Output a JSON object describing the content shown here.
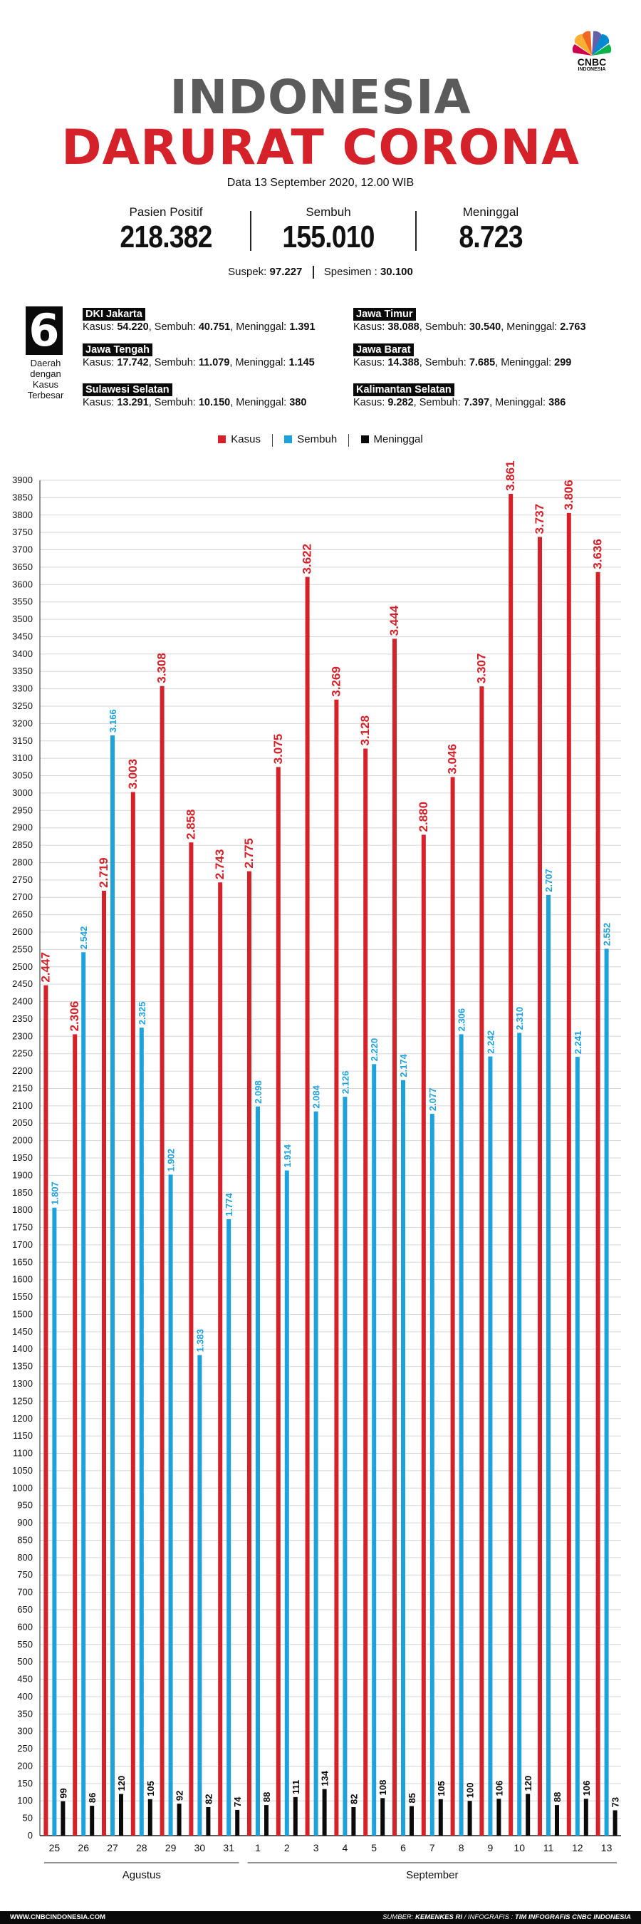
{
  "logo": {
    "name": "CNBC",
    "sub": "INDONESIA"
  },
  "header": {
    "title_line1": "INDONESIA",
    "title_line2": "DARURAT CORONA",
    "date": "Data 13 September 2020, 12.00 WIB"
  },
  "stats": [
    {
      "label": "Pasien Positif",
      "value": "218.382"
    },
    {
      "label": "Sembuh",
      "value": "155.010"
    },
    {
      "label": "Meninggal",
      "value": "8.723"
    }
  ],
  "sub_stats": {
    "suspek_label": "Suspek: ",
    "suspek_value": "97.227",
    "spesimen_label": "Spesimen : ",
    "spesimen_value": "30.100"
  },
  "regions_header": {
    "number": "6",
    "caption": "Daerah dengan Kasus Terbesar"
  },
  "regions": [
    {
      "name": "DKI Jakarta",
      "kasus": "54.220",
      "sembuh": "40.751",
      "meninggal": "1.391"
    },
    {
      "name": "Jawa Tengah",
      "kasus": "17.742",
      "sembuh": "11.079",
      "meninggal": "1.145"
    },
    {
      "name": "Sulawesi Selatan",
      "kasus": "13.291",
      "sembuh": "10.150",
      "meninggal": "380"
    },
    {
      "name": "Jawa Timur",
      "kasus": "38.088",
      "sembuh": "30.540",
      "meninggal": "2.763"
    },
    {
      "name": "Jawa Barat",
      "kasus": "14.388",
      "sembuh": "7.685",
      "meninggal": "299"
    },
    {
      "name": "Kalimantan Selatan",
      "kasus": "9.282",
      "sembuh": "7.397",
      "meninggal": "386"
    }
  ],
  "region_labels": {
    "kasus": "Kasus: ",
    "sembuh": ", Sembuh: ",
    "meninggal": ", Meninggal: "
  },
  "legend": [
    {
      "name": "Kasus",
      "color": "#d52129"
    },
    {
      "name": "Sembuh",
      "color": "#1ea2dc"
    },
    {
      "name": "Meninggal",
      "color": "#0a0a0a"
    }
  ],
  "chart_data": {
    "type": "bar",
    "categories": [
      "25",
      "26",
      "27",
      "28",
      "29",
      "30",
      "31",
      "1",
      "2",
      "3",
      "4",
      "5",
      "6",
      "7",
      "8",
      "9",
      "10",
      "11",
      "12",
      "13"
    ],
    "groups": [
      {
        "label": "Agustus",
        "from": 0,
        "to": 6
      },
      {
        "label": "September",
        "from": 7,
        "to": 19
      }
    ],
    "ylim": [
      0,
      3900
    ],
    "ytick_step": 50,
    "grid": true,
    "series": [
      {
        "name": "Kasus",
        "color": "#d52129",
        "values": [
          2447,
          2306,
          2719,
          3003,
          3308,
          2858,
          2743,
          2775,
          3075,
          3622,
          3269,
          3128,
          3444,
          2880,
          3046,
          3307,
          3861,
          3737,
          3806,
          3636
        ],
        "labels": [
          "2.447",
          "2.306",
          "2.719",
          "3.003",
          "3.308",
          "2.858",
          "2.743",
          "2.775",
          "3.075",
          "3.622",
          "3.269",
          "3.128",
          "3.444",
          "2.880",
          "3.046",
          "3.307",
          "3.861",
          "3.737",
          "3.806",
          "3.636"
        ]
      },
      {
        "name": "Sembuh",
        "color": "#1ea2dc",
        "values": [
          1807,
          2542,
          3166,
          2325,
          1902,
          1383,
          1774,
          2098,
          1914,
          2084,
          2126,
          2220,
          2174,
          2077,
          2306,
          2242,
          2310,
          2707,
          2241,
          2552
        ],
        "labels": [
          "1.807",
          "2.542",
          "3.166",
          "2.325",
          "1.902",
          "1.383",
          "1.774",
          "2.098",
          "1.914",
          "2.084",
          "2.126",
          "2.220",
          "2.174",
          "2.077",
          "2.306",
          "2.242",
          "2.310",
          "2.707",
          "2.241",
          "2.552"
        ]
      },
      {
        "name": "Meninggal",
        "color": "#0a0a0a",
        "values": [
          99,
          86,
          120,
          105,
          92,
          82,
          74,
          88,
          111,
          134,
          82,
          108,
          85,
          105,
          100,
          106,
          120,
          88,
          106,
          73
        ],
        "labels": [
          "99",
          "86",
          "120",
          "105",
          "92",
          "82",
          "74",
          "88",
          "111",
          "134",
          "82",
          "108",
          "85",
          "105",
          "100",
          "106",
          "120",
          "88",
          "106",
          "73"
        ]
      }
    ]
  },
  "footer": {
    "left": "WWW.CNBCINDONESIA.COM",
    "right_prefix": "SUMBER: ",
    "right_source": "KEMENKES RI",
    "right_mid": " / INFOGRAFIS : ",
    "right_credit": "TIM INFOGRAFIS CNBC INDONESIA"
  }
}
